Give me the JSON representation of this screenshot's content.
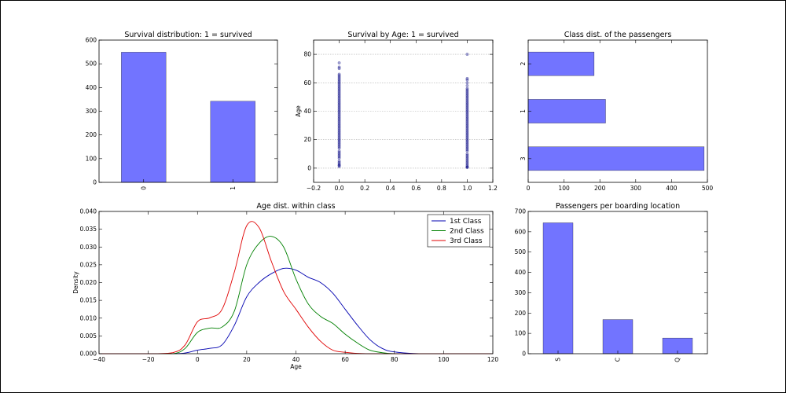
{
  "chart_data": [
    {
      "type": "bar",
      "title": "Survival distribution: 1 = survived",
      "categories": [
        "0",
        "1"
      ],
      "values": [
        549,
        342
      ],
      "ylim": [
        0,
        600
      ],
      "yticks": [
        0,
        100,
        200,
        300,
        400,
        500,
        600
      ],
      "color": "#7274ff"
    },
    {
      "type": "scatter",
      "title": "Survival by Age: 1 = survived",
      "ylabel": "Age",
      "xlim": [
        -0.2,
        1.2
      ],
      "ylim": [
        -10,
        90
      ],
      "xticks": [
        -0.2,
        0.0,
        0.2,
        0.4,
        0.6,
        0.8,
        1.0,
        1.2
      ],
      "xtick_labels": [
        "−0.2",
        "0.0",
        "0.2",
        "0.4",
        "0.6",
        "0.8",
        "1.0",
        "1.2"
      ],
      "yticks": [
        0,
        20,
        40,
        60,
        80
      ],
      "grid": "y",
      "color": "#000080",
      "series": [
        {
          "x": 0,
          "ages": [
            1,
            2,
            2,
            3,
            4,
            5,
            7,
            8,
            9,
            10,
            11,
            12,
            14,
            15,
            16,
            17,
            18,
            19,
            20,
            21,
            22,
            23,
            24,
            25,
            26,
            27,
            28,
            29,
            30,
            31,
            32,
            33,
            34,
            35,
            36,
            37,
            38,
            39,
            40,
            41,
            42,
            43,
            44,
            45,
            46,
            47,
            48,
            49,
            50,
            51,
            52,
            53,
            54,
            55,
            56,
            57,
            58,
            59,
            60,
            61,
            62,
            63,
            64,
            65,
            66,
            70,
            71,
            74
          ]
        },
        {
          "x": 1,
          "ages": [
            0.4,
            0.8,
            1,
            2,
            3,
            4,
            5,
            6,
            7,
            8,
            9,
            10,
            12,
            13,
            14,
            15,
            16,
            17,
            18,
            19,
            20,
            21,
            22,
            23,
            24,
            25,
            26,
            27,
            28,
            29,
            30,
            31,
            32,
            33,
            34,
            35,
            36,
            37,
            38,
            39,
            40,
            41,
            42,
            43,
            44,
            45,
            46,
            47,
            48,
            49,
            50,
            51,
            52,
            53,
            54,
            55,
            56,
            58,
            60,
            62,
            63,
            80
          ]
        }
      ]
    },
    {
      "type": "bar",
      "orientation": "horizontal",
      "title": "Class dist. of the passengers",
      "categories": [
        "3",
        "1",
        "2"
      ],
      "values": [
        491,
        216,
        184
      ],
      "xlim": [
        0,
        500
      ],
      "xticks": [
        0,
        100,
        200,
        300,
        400,
        500
      ],
      "color": "#7274ff"
    },
    {
      "type": "line",
      "title": "Age dist. within class",
      "xlabel": "Age",
      "ylabel": "Density",
      "xlim": [
        -40,
        120
      ],
      "ylim": [
        0,
        0.04
      ],
      "xticks": [
        -40,
        -20,
        0,
        20,
        40,
        60,
        80,
        100,
        120
      ],
      "xtick_labels": [
        "−40",
        "−20",
        "0",
        "20",
        "40",
        "60",
        "80",
        "100",
        "120"
      ],
      "yticks": [
        0,
        0.005,
        0.01,
        0.015,
        0.02,
        0.025,
        0.03,
        0.035,
        0.04
      ],
      "ytick_labels": [
        "0.000",
        "0.005",
        "0.010",
        "0.015",
        "0.020",
        "0.025",
        "0.030",
        "0.035",
        "0.040"
      ],
      "legend": "top-right",
      "x": [
        -40,
        -20,
        -10,
        -5,
        0,
        5,
        10,
        15,
        20,
        25,
        30,
        35,
        40,
        45,
        50,
        55,
        60,
        65,
        70,
        75,
        80,
        90,
        100,
        120
      ],
      "series": [
        {
          "name": "1st Class",
          "color": "#0000b0",
          "values": [
            0,
            0,
            0,
            0.0002,
            0.001,
            0.0015,
            0.0025,
            0.008,
            0.016,
            0.02,
            0.0225,
            0.024,
            0.0235,
            0.0215,
            0.02,
            0.017,
            0.0125,
            0.008,
            0.004,
            0.0015,
            0.0005,
            0,
            0,
            0
          ]
        },
        {
          "name": "2nd Class",
          "color": "#008000",
          "values": [
            0,
            0,
            0,
            0.0015,
            0.006,
            0.0072,
            0.0075,
            0.012,
            0.025,
            0.031,
            0.033,
            0.03,
            0.021,
            0.014,
            0.0105,
            0.0085,
            0.0055,
            0.003,
            0.001,
            0.0003,
            0,
            0,
            0,
            0
          ]
        },
        {
          "name": "3rd Class",
          "color": "#e00000",
          "values": [
            0,
            0,
            0.0003,
            0.0025,
            0.009,
            0.0101,
            0.0125,
            0.023,
            0.036,
            0.0355,
            0.026,
            0.0175,
            0.0125,
            0.0075,
            0.0035,
            0.001,
            0.0004,
            0.0001,
            0,
            0,
            0,
            0,
            0,
            0
          ]
        }
      ]
    },
    {
      "type": "bar",
      "title": "Passengers per boarding location",
      "categories": [
        "S",
        "C",
        "Q"
      ],
      "values": [
        644,
        168,
        77
      ],
      "ylim": [
        0,
        700
      ],
      "yticks": [
        0,
        100,
        200,
        300,
        400,
        500,
        600,
        700
      ],
      "color": "#7274ff"
    }
  ]
}
